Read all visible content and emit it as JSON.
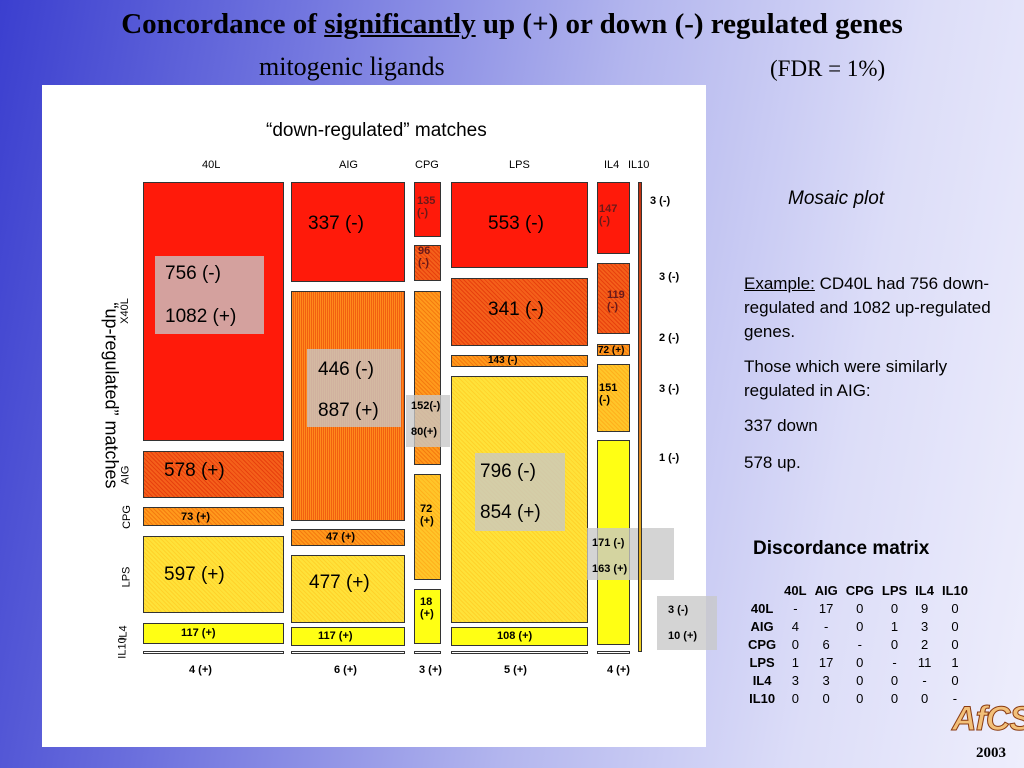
{
  "title": {
    "prefix": "Concordance of ",
    "underlined": "significantly",
    "suffix": " up (+) or down (-) regulated genes"
  },
  "subtitle": {
    "left": "mitogenic ligands",
    "right": "(FDR = 1%)"
  },
  "mosaic": {
    "top_title": "“down-regulated” matches",
    "side_title": "“up-regulated” matches",
    "columns": [
      "40L",
      "AIG",
      "CPG",
      "LPS",
      "IL4",
      "IL10"
    ],
    "rows": [
      "X40L",
      "AIG",
      "CPG",
      "LPS",
      "IL4",
      "IL10"
    ],
    "labels": {
      "c1_big1": "756 (-)",
      "c1_big2": "1082 (+)",
      "c1_578": "578 (+)",
      "c1_73": "73 (+)",
      "c1_597": "597 (+)",
      "c1_117": "117 (+)",
      "c2_337": "337 (-)",
      "c2_446": "446 (-)",
      "c2_887": "887 (+)",
      "c2_47": "47 (+)",
      "c2_477": "477 (+)",
      "c2_117": "117 (+)",
      "c3_135": "135 (-)",
      "c3_96": "96 (-)",
      "c3_152": "152(-)",
      "c3_80": "80(+)",
      "c3_72": "72 (+)",
      "c3_18": "18 (+)",
      "c4_553": "553 (-)",
      "c4_341": "341 (-)",
      "c4_143": "143 (-)",
      "c4_796": "796 (-)",
      "c4_854": "854 (+)",
      "c4_108": "108 (+)",
      "c5_147": "147 (-)",
      "c5_119": "119 (-)",
      "c5_72": "72 (+)",
      "c5_151": "151 (-)",
      "c5_171": "171 (-)",
      "c5_163": "163 (+)",
      "c6_r1": "3 (-)",
      "c6_r2": "3 (-)",
      "c6_r3": "2 (-)",
      "c6_r4": "3 (-)",
      "c6_r5": "1 (-)",
      "c6_gray1": "3 (-)",
      "c6_gray2": "10 (+)"
    },
    "bottom": [
      "4 (+)",
      "6 (+)",
      "3 (+)",
      "5 (+)",
      "4 (+)"
    ]
  },
  "side_notes": {
    "mosaic_caption": "Mosaic plot",
    "example_label": "Example:",
    "example_text": " CD40L had 756 down-regulated and 1082 up-regulated genes.",
    "para2": "Those which were similarly regulated in AIG:",
    "para3": "337 down",
    "para4": "578 up."
  },
  "discordance": {
    "title": "Discordance matrix",
    "headers": [
      "",
      "40L",
      "AIG",
      "CPG",
      "LPS",
      "IL4",
      "IL10"
    ],
    "rows": [
      [
        "40L",
        "-",
        "17",
        "0",
        "0",
        "9",
        "0"
      ],
      [
        "AIG",
        "4",
        "-",
        "0",
        "1",
        "3",
        "0"
      ],
      [
        "CPG",
        "0",
        "6",
        "-",
        "0",
        "2",
        "0"
      ],
      [
        "LPS",
        "1",
        "17",
        "0",
        "-",
        "11",
        "1"
      ],
      [
        "IL4",
        "3",
        "3",
        "0",
        "0",
        "-",
        "0"
      ],
      [
        "IL10",
        "0",
        "0",
        "0",
        "0",
        "0",
        "-"
      ]
    ]
  },
  "logo": "AfCS",
  "year": "2003",
  "colors": {
    "red": "#ff1a0a",
    "orange": "#ff9a1c",
    "yellow": "#ffff14"
  }
}
